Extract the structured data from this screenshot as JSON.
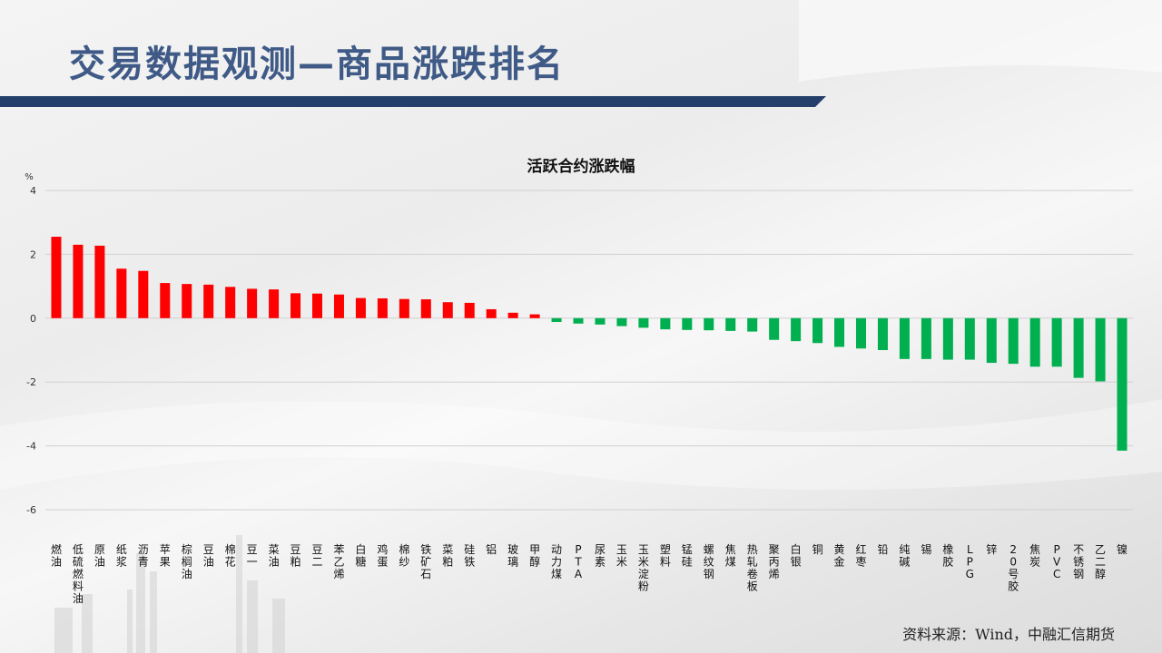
{
  "header": {
    "title": "交易数据观测—商品涨跌排名"
  },
  "source": "资料来源：Wind，中融汇信期货",
  "colors": {
    "up": "#ff0000",
    "down": "#00b050",
    "title": "#3f5a86",
    "band": "#243f6b"
  },
  "chart_data": {
    "type": "bar",
    "title": "活跃合约涨跌幅",
    "ylabel": "%",
    "ylim": [
      -6,
      4
    ],
    "yticks": [
      4,
      2,
      0,
      -2,
      -4,
      -6
    ],
    "grid": true,
    "categories": [
      "燃油",
      "低硫燃料油",
      "原油",
      "纸浆",
      "沥青",
      "苹果",
      "棕榈油",
      "豆油",
      "棉花",
      "豆一",
      "菜油",
      "豆粕",
      "豆二",
      "苯乙烯",
      "白糖",
      "鸡蛋",
      "棉纱",
      "铁矿石",
      "菜粕",
      "硅铁",
      "铝",
      "玻璃",
      "甲醇",
      "动力煤",
      "PTA",
      "尿素",
      "玉米",
      "玉米淀粉",
      "塑料",
      "锰硅",
      "螺纹钢",
      "焦煤",
      "热轧卷板",
      "聚丙烯",
      "白银",
      "铜",
      "黄金",
      "红枣",
      "铅",
      "纯碱",
      "锡",
      "橡胶",
      "LPG",
      "锌",
      "20号胶",
      "焦炭",
      "PVC",
      "不锈钢",
      "乙二醇",
      "镍"
    ],
    "values": [
      2.55,
      2.3,
      2.27,
      1.55,
      1.48,
      1.1,
      1.07,
      1.05,
      0.98,
      0.92,
      0.9,
      0.78,
      0.77,
      0.74,
      0.63,
      0.62,
      0.6,
      0.59,
      0.5,
      0.48,
      0.28,
      0.17,
      0.12,
      -0.12,
      -0.17,
      -0.2,
      -0.25,
      -0.3,
      -0.35,
      -0.37,
      -0.38,
      -0.4,
      -0.42,
      -0.68,
      -0.72,
      -0.78,
      -0.9,
      -0.95,
      -1.0,
      -1.28,
      -1.28,
      -1.3,
      -1.3,
      -1.4,
      -1.43,
      -1.52,
      -1.52,
      -1.87,
      -1.98,
      -4.15
    ]
  }
}
